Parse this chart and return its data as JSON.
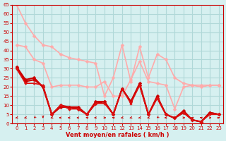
{
  "background_color": "#d6f0f0",
  "grid_color": "#b0d8d8",
  "text_color": "#cc0000",
  "xlabel": "Vent moyen/en rafales ( km/h )",
  "xlim": [
    -0.5,
    23.5
  ],
  "ylim": [
    0,
    65
  ],
  "yticks": [
    0,
    5,
    10,
    15,
    20,
    25,
    30,
    35,
    40,
    45,
    50,
    55,
    60,
    65
  ],
  "xticks": [
    0,
    1,
    2,
    3,
    4,
    5,
    6,
    7,
    8,
    9,
    10,
    11,
    12,
    13,
    14,
    15,
    16,
    17,
    18,
    19,
    20,
    21,
    22,
    23
  ],
  "series": [
    {
      "x": [
        0,
        1,
        2,
        3,
        4,
        5,
        6,
        7,
        8,
        9,
        10,
        11,
        12,
        13,
        14,
        15,
        16,
        17,
        18,
        19,
        20,
        21,
        22,
        23
      ],
      "y": [
        65,
        55,
        48,
        43,
        42,
        38,
        36,
        35,
        34,
        33,
        15,
        25,
        43,
        23,
        42,
        25,
        38,
        35,
        25,
        22,
        21,
        21,
        21,
        21
      ],
      "color": "#ffaaaa",
      "linewidth": 1.2,
      "marker": "D",
      "markersize": 2.5
    },
    {
      "x": [
        0,
        1,
        2,
        3,
        4,
        5,
        6,
        7,
        8,
        9,
        10,
        11,
        12,
        13,
        14,
        15,
        16,
        17,
        18,
        19,
        20,
        21,
        22,
        23
      ],
      "y": [
        43,
        42,
        35,
        33,
        20,
        21,
        21,
        21,
        20,
        20,
        23,
        15,
        15,
        24,
        34,
        23,
        22,
        21,
        8,
        20,
        21,
        20,
        21,
        21
      ],
      "color": "#ffaaaa",
      "linewidth": 1.2,
      "marker": "D",
      "markersize": 2.5
    },
    {
      "x": [
        0,
        1,
        2,
        3,
        4,
        5,
        6,
        7,
        8,
        9,
        10,
        11,
        12,
        13,
        14,
        15,
        16,
        17,
        18,
        19,
        20,
        21,
        22,
        23
      ],
      "y": [
        31,
        24,
        25,
        20,
        5,
        9,
        9,
        9,
        5,
        12,
        12,
        5,
        19,
        12,
        21,
        5,
        15,
        5,
        3,
        7,
        2,
        1,
        6,
        5
      ],
      "color": "#cc0000",
      "linewidth": 1.5,
      "marker": "D",
      "markersize": 2.5
    },
    {
      "x": [
        0,
        1,
        2,
        3,
        4,
        5,
        6,
        7,
        8,
        9,
        10,
        11,
        12,
        13,
        14,
        15,
        16,
        17,
        18,
        19,
        20,
        21,
        22,
        23
      ],
      "y": [
        30,
        23,
        24,
        20,
        5,
        10,
        9,
        8,
        5,
        11,
        12,
        5,
        19,
        12,
        22,
        5,
        14,
        5,
        3,
        6,
        2,
        1,
        6,
        5
      ],
      "color": "#cc0000",
      "linewidth": 1.5,
      "marker": "D",
      "markersize": 2.5
    },
    {
      "x": [
        0,
        1,
        2,
        3,
        4,
        5,
        6,
        7,
        8,
        9,
        10,
        11,
        12,
        13,
        14,
        15,
        16,
        17,
        18,
        19,
        20,
        21,
        22,
        23
      ],
      "y": [
        30,
        22,
        22,
        21,
        5,
        10,
        8,
        8,
        5,
        11,
        11,
        5,
        19,
        11,
        21,
        5,
        14,
        5,
        3,
        6,
        2,
        1,
        5,
        5
      ],
      "color": "#dd1111",
      "linewidth": 1.2,
      "marker": "D",
      "markersize": 2.0
    }
  ],
  "wind_directions": [
    225,
    225,
    200,
    180,
    225,
    270,
    270,
    270,
    315,
    270,
    90,
    315,
    225,
    225,
    225,
    225,
    200,
    270,
    45,
    90,
    315,
    315,
    90,
    45
  ]
}
